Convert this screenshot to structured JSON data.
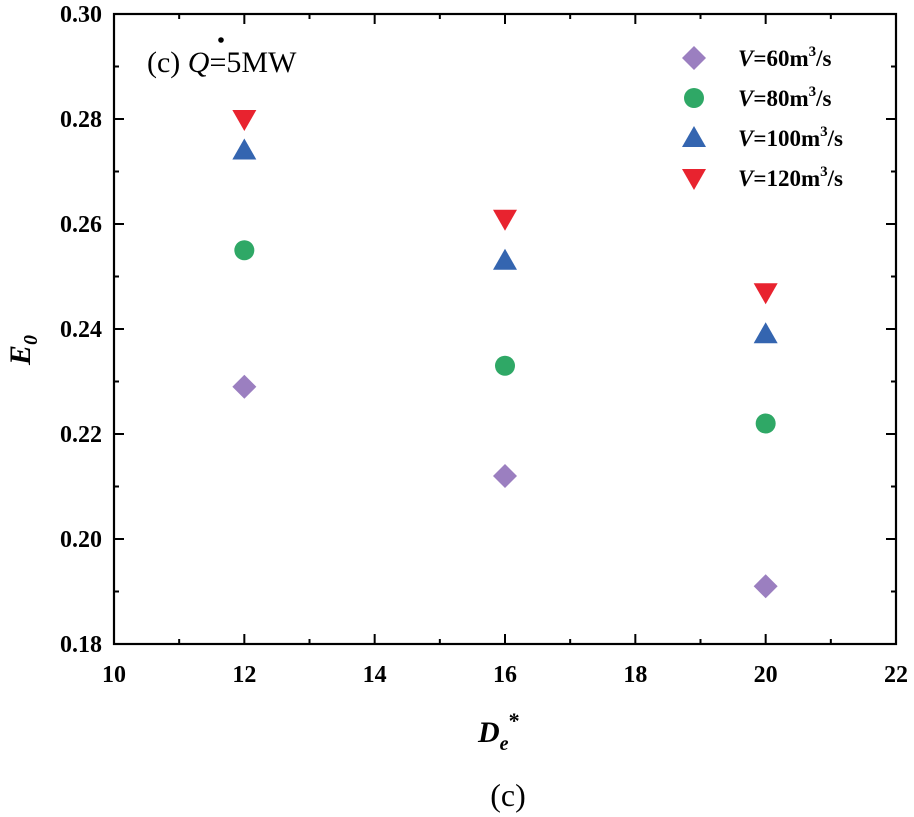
{
  "chart_data": {
    "type": "scatter",
    "annotation": {
      "prefix": "(c) ",
      "symbol": "Q",
      "suffix": "=5MW"
    },
    "xlabel": {
      "main": "D",
      "sub": "e",
      "sup": "*"
    },
    "ylabel": {
      "main": "E",
      "sub": "0"
    },
    "xlim": [
      10,
      22
    ],
    "ylim": [
      0.18,
      0.3
    ],
    "xticks": [
      "10",
      "12",
      "14",
      "16",
      "18",
      "20",
      "22"
    ],
    "yticks": [
      "0.18",
      "0.20",
      "0.22",
      "0.24",
      "0.26",
      "0.28",
      "0.30"
    ],
    "x": [
      12,
      16,
      20
    ],
    "series": [
      {
        "name": "V=60m3/s",
        "label_var": "V",
        "label_mid": "=60m",
        "label_sup": "3",
        "label_end": "/s",
        "marker": "diamond",
        "color": "#9b7fc0",
        "values": [
          0.229,
          0.212,
          0.191
        ]
      },
      {
        "name": "V=80m3/s",
        "label_var": "V",
        "label_mid": "=80m",
        "label_sup": "3",
        "label_end": "/s",
        "marker": "circle",
        "color": "#2fa866",
        "values": [
          0.255,
          0.233,
          0.222
        ]
      },
      {
        "name": "V=100m3/s",
        "label_var": "V",
        "label_mid": "=100m",
        "label_sup": "3",
        "label_end": "/s",
        "marker": "triangle-up",
        "color": "#3465b0",
        "values": [
          0.274,
          0.253,
          0.239
        ]
      },
      {
        "name": "V=120m3/s",
        "label_var": "V",
        "label_mid": "=120m",
        "label_sup": "3",
        "label_end": "/s",
        "marker": "triangle-down",
        "color": "#e8232f",
        "values": [
          0.28,
          0.261,
          0.247
        ]
      }
    ],
    "legend_position": "top-right",
    "grid": false,
    "caption": "(c)"
  }
}
